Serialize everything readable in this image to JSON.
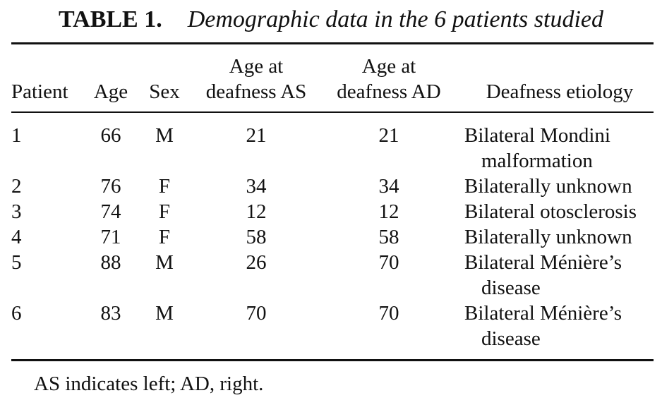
{
  "table": {
    "label": "TABLE 1.",
    "title": "Demographic data in the 6 patients studied",
    "headers": {
      "patient": "Patient",
      "age": "Age",
      "sex": "Sex",
      "age_deaf_as_line1": "Age at",
      "age_deaf_as_line2": "deafness AS",
      "age_deaf_ad_line1": "Age at",
      "age_deaf_ad_line2": "deafness AD",
      "etiology": "Deafness etiology"
    },
    "rows": [
      {
        "patient": "1",
        "age": "66",
        "sex": "M",
        "as": "21",
        "ad": "21",
        "etiology_line1": "Bilateral Mondini",
        "etiology_line2": "malformation"
      },
      {
        "patient": "2",
        "age": "76",
        "sex": "F",
        "as": "34",
        "ad": "34",
        "etiology_line1": "Bilaterally unknown",
        "etiology_line2": ""
      },
      {
        "patient": "3",
        "age": "74",
        "sex": "F",
        "as": "12",
        "ad": "12",
        "etiology_line1": "Bilateral otosclerosis",
        "etiology_line2": ""
      },
      {
        "patient": "4",
        "age": "71",
        "sex": "F",
        "as": "58",
        "ad": "58",
        "etiology_line1": "Bilaterally unknown",
        "etiology_line2": ""
      },
      {
        "patient": "5",
        "age": "88",
        "sex": "M",
        "as": "26",
        "ad": "70",
        "etiology_line1": "Bilateral Ménière’s",
        "etiology_line2": "disease"
      },
      {
        "patient": "6",
        "age": "83",
        "sex": "M",
        "as": "70",
        "ad": "70",
        "etiology_line1": "Bilateral Ménière’s",
        "etiology_line2": "disease"
      }
    ],
    "footnote": "AS indicates left; AD, right."
  }
}
